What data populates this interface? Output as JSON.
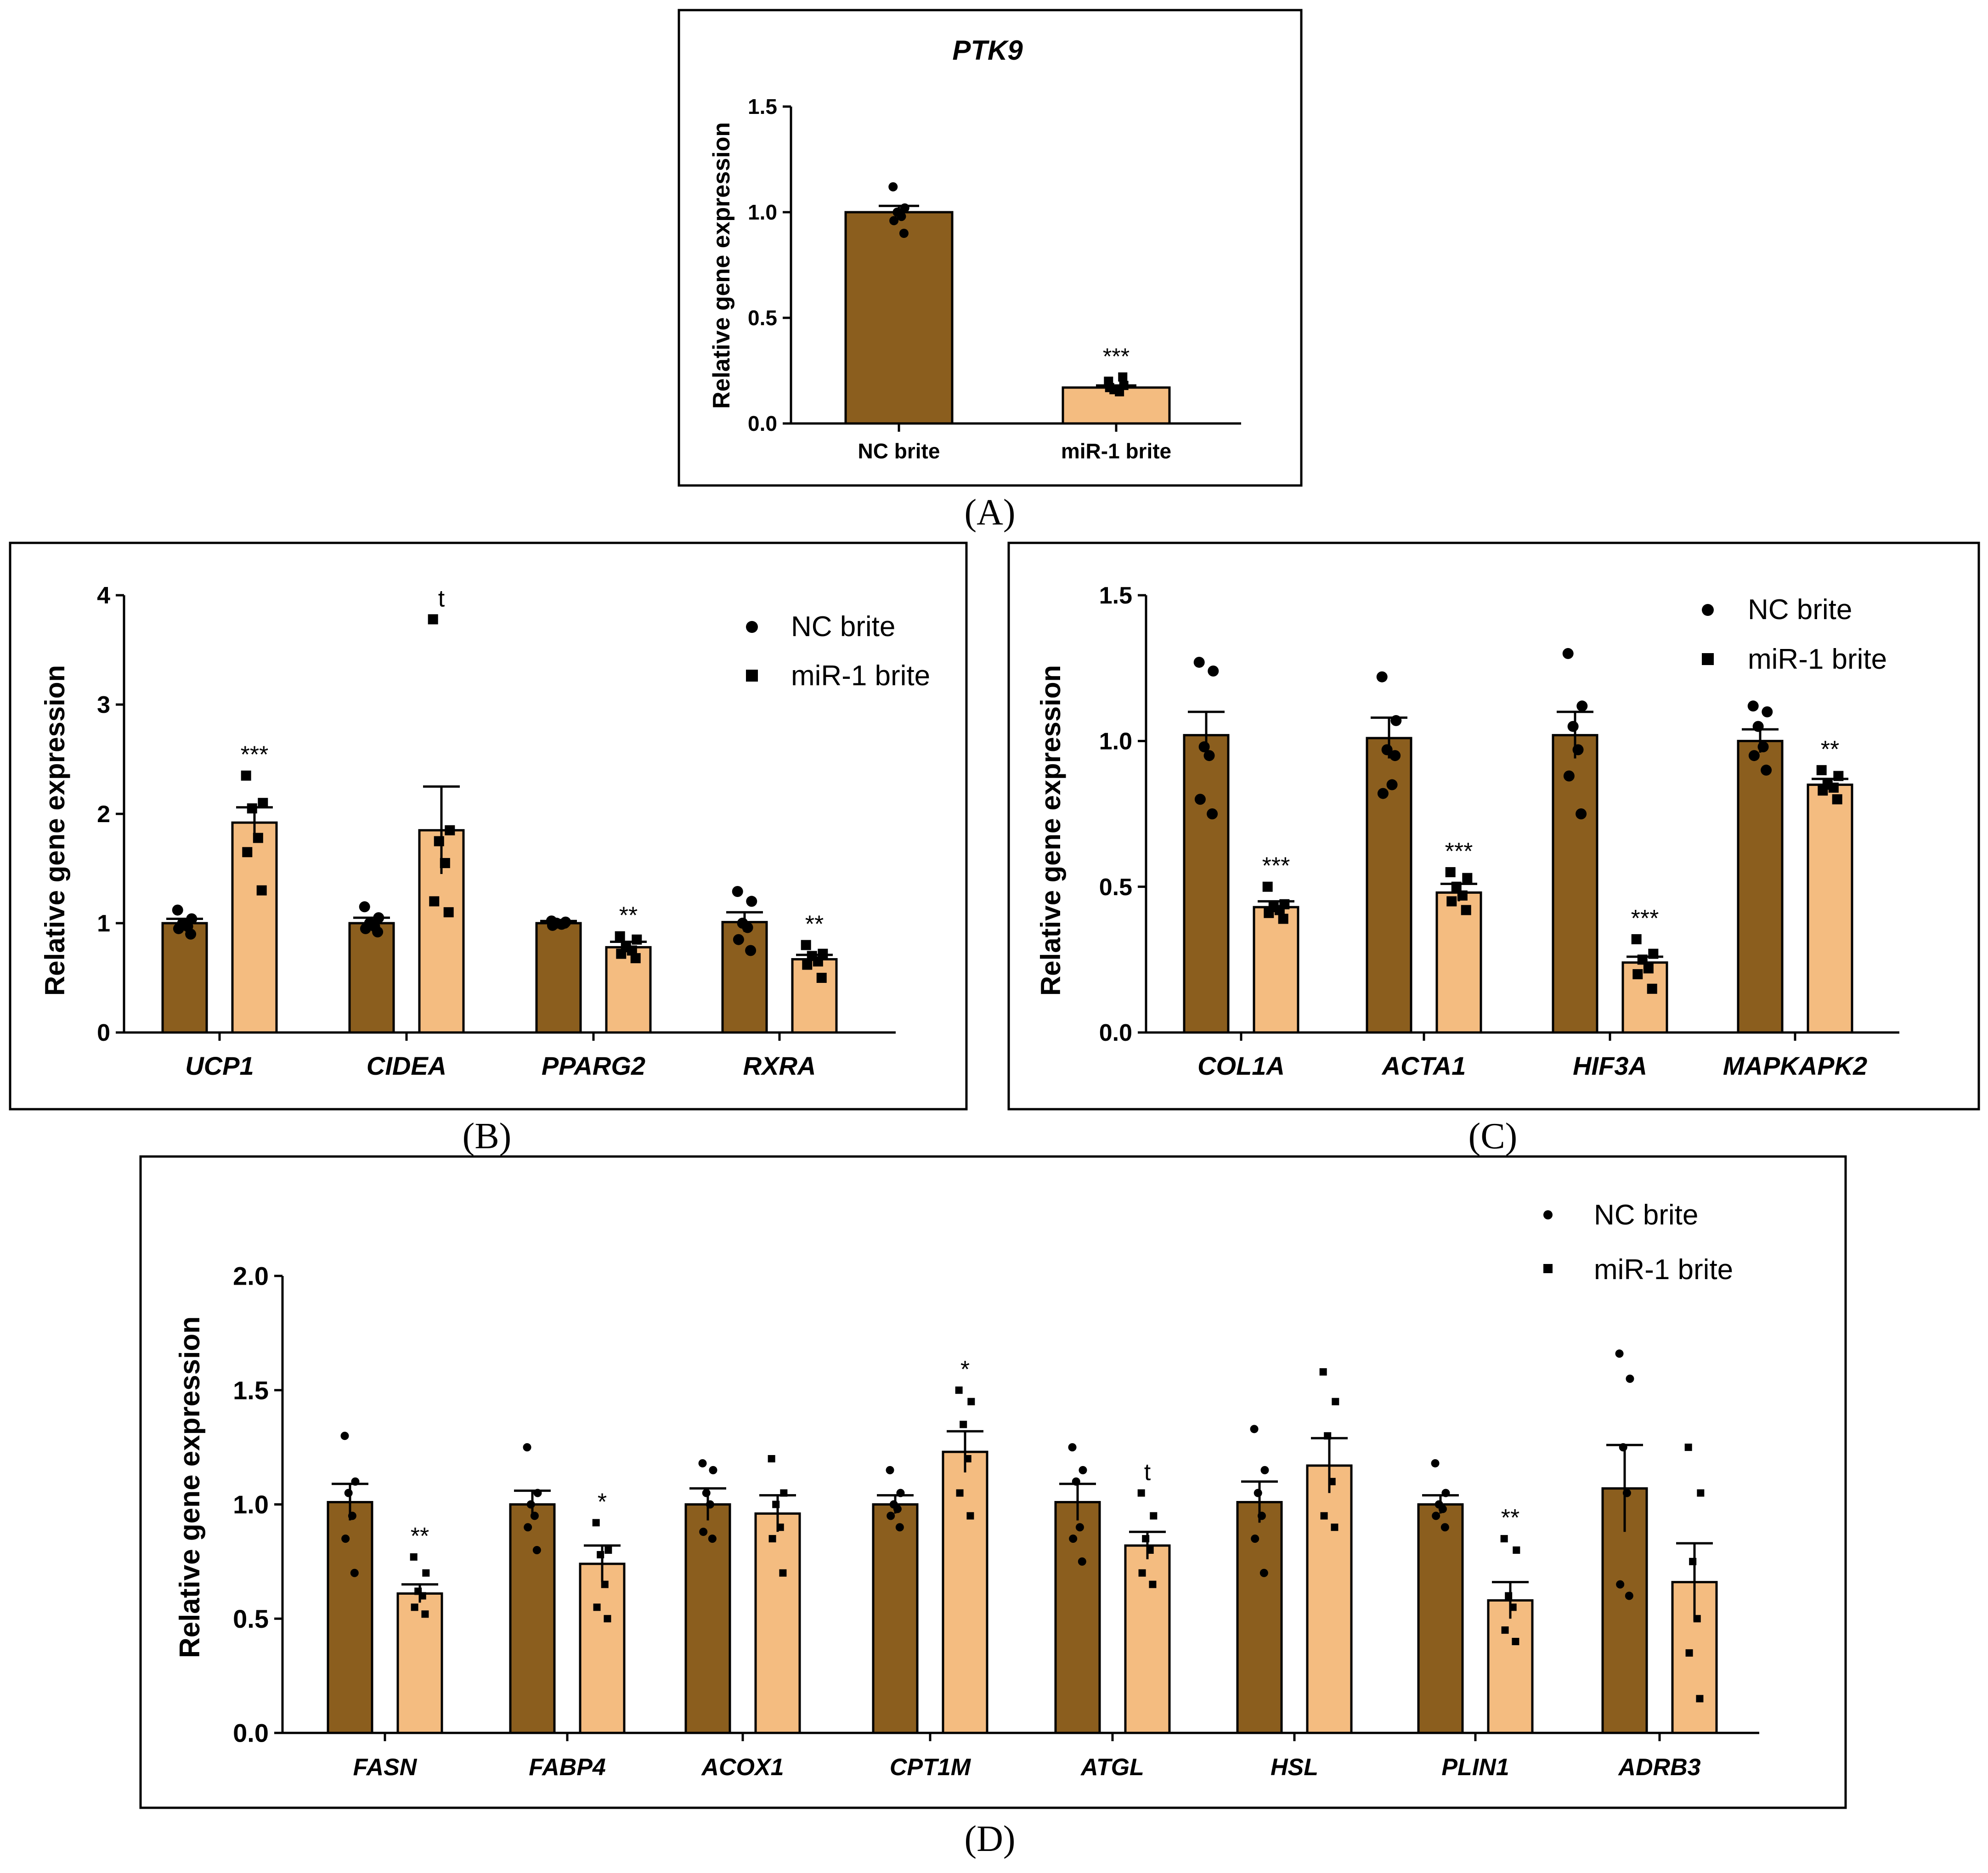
{
  "colors": {
    "nc": "#8B5E1E",
    "mir": "#F4BC80",
    "stroke": "#000000"
  },
  "legend": {
    "nc": "NC brite",
    "mir": "miR-1 brite"
  },
  "chart_data": [
    {
      "panel": "(A)",
      "type": "bar",
      "title": "PTK9",
      "ylabel": "Relative gene expression",
      "ylim": [
        0,
        1.5
      ],
      "yticks": [
        "0.0",
        "0.5",
        "1.0",
        "1.5"
      ],
      "categories": [
        "NC brite",
        "miR-1 brite"
      ],
      "values": [
        1.0,
        0.17
      ],
      "sem": [
        0.03,
        0.01
      ],
      "sig": [
        "",
        "***"
      ],
      "points": [
        [
          1.12,
          1.02,
          1.0,
          0.98,
          0.96,
          0.9
        ],
        [
          0.2,
          0.18,
          0.16,
          0.15,
          0.17,
          0.22
        ]
      ]
    },
    {
      "panel": "(B)",
      "type": "bar",
      "ylabel": "Relative gene expression",
      "ylim": [
        0,
        4
      ],
      "yticks": [
        "0",
        "1",
        "2",
        "3",
        "4"
      ],
      "legend": [
        "NC brite",
        "miR-1 brite"
      ],
      "categories": [
        "UCP1",
        "CIDEA",
        "PPARG2",
        "RXRA"
      ],
      "series": [
        {
          "name": "NC brite",
          "values": [
            1.0,
            1.0,
            1.0,
            1.01
          ],
          "sem": [
            0.04,
            0.05,
            0.02,
            0.09
          ],
          "points": [
            [
              1.12,
              1.04,
              1.0,
              0.97,
              0.95,
              0.9
            ],
            [
              1.15,
              1.05,
              1.0,
              0.97,
              0.95,
              0.92
            ],
            [
              1.02,
              1.01,
              1.0,
              0.99,
              0.98,
              1.0
            ],
            [
              1.29,
              1.2,
              1.0,
              0.96,
              0.85,
              0.75
            ]
          ]
        },
        {
          "name": "miR-1 brite",
          "values": [
            1.92,
            1.85,
            0.78,
            0.67
          ],
          "sem": [
            0.14,
            0.4,
            0.05,
            0.04
          ],
          "points": [
            [
              2.35,
              2.1,
              2.05,
              1.78,
              1.65,
              1.3
            ],
            [
              3.78,
              1.85,
              1.75,
              1.55,
              1.2,
              1.1
            ],
            [
              0.88,
              0.85,
              0.78,
              0.75,
              0.72,
              0.68
            ],
            [
              0.8,
              0.72,
              0.7,
              0.65,
              0.62,
              0.5
            ]
          ]
        }
      ],
      "sig": [
        "***",
        "t",
        "**",
        "**"
      ]
    },
    {
      "panel": "(C)",
      "type": "bar",
      "ylabel": "Relative gene expression",
      "ylim": [
        0,
        1.5
      ],
      "yticks": [
        "0.0",
        "0.5",
        "1.0",
        "1.5"
      ],
      "legend": [
        "NC brite",
        "miR-1 brite"
      ],
      "categories": [
        "COL1A",
        "ACTA1",
        "HIF3A",
        "MAPKAPK2"
      ],
      "series": [
        {
          "name": "NC brite",
          "values": [
            1.02,
            1.01,
            1.02,
            1.0
          ],
          "sem": [
            0.08,
            0.07,
            0.08,
            0.04
          ],
          "points": [
            [
              1.27,
              1.24,
              0.98,
              0.95,
              0.8,
              0.75
            ],
            [
              1.22,
              1.07,
              0.97,
              0.85,
              0.82,
              0.95
            ],
            [
              1.3,
              1.12,
              1.05,
              0.97,
              0.88,
              0.75
            ],
            [
              1.12,
              1.1,
              1.05,
              0.98,
              0.95,
              0.9
            ]
          ]
        },
        {
          "name": "miR-1 brite",
          "values": [
            0.43,
            0.48,
            0.24,
            0.85
          ],
          "sem": [
            0.02,
            0.03,
            0.02,
            0.02
          ],
          "points": [
            [
              0.5,
              0.44,
              0.43,
              0.42,
              0.41,
              0.39
            ],
            [
              0.55,
              0.53,
              0.5,
              0.47,
              0.45,
              0.42
            ],
            [
              0.32,
              0.27,
              0.25,
              0.22,
              0.2,
              0.15
            ],
            [
              0.9,
              0.88,
              0.85,
              0.84,
              0.83,
              0.8
            ]
          ]
        }
      ],
      "sig": [
        "***",
        "***",
        "***",
        "**"
      ]
    },
    {
      "panel": "(D)",
      "type": "bar",
      "ylabel": "Relative gene expression",
      "ylim": [
        0,
        2.0
      ],
      "yticks": [
        "0.0",
        "0.5",
        "1.0",
        "1.5",
        "2.0"
      ],
      "legend": [
        "NC brite",
        "miR-1 brite"
      ],
      "categories": [
        "FASN",
        "FABP4",
        "ACOX1",
        "CPT1M",
        "ATGL",
        "HSL",
        "PLIN1",
        "ADRB3"
      ],
      "series": [
        {
          "name": "NC brite",
          "values": [
            1.01,
            1.0,
            1.0,
            1.0,
            1.01,
            1.01,
            1.0,
            1.07
          ],
          "sem": [
            0.08,
            0.06,
            0.07,
            0.04,
            0.08,
            0.09,
            0.04,
            0.19
          ],
          "points": [
            [
              1.3,
              1.1,
              1.05,
              0.95,
              0.85,
              0.7
            ],
            [
              1.25,
              1.05,
              1.0,
              0.95,
              0.9,
              0.8
            ],
            [
              1.18,
              1.15,
              1.05,
              1.0,
              0.88,
              0.85
            ],
            [
              1.15,
              1.05,
              1.0,
              0.98,
              0.95,
              0.9
            ],
            [
              1.25,
              1.15,
              1.1,
              0.9,
              0.85,
              0.75
            ],
            [
              1.33,
              1.15,
              1.05,
              0.95,
              0.85,
              0.7
            ],
            [
              1.18,
              1.05,
              1.0,
              0.98,
              0.95,
              0.9
            ],
            [
              1.66,
              1.55,
              1.25,
              1.05,
              0.65,
              0.6
            ]
          ]
        },
        {
          "name": "miR-1 brite",
          "values": [
            0.61,
            0.74,
            0.96,
            1.23,
            0.82,
            1.17,
            0.58,
            0.66
          ],
          "sem": [
            0.04,
            0.08,
            0.08,
            0.09,
            0.06,
            0.12,
            0.08,
            0.17
          ],
          "points": [
            [
              0.77,
              0.7,
              0.62,
              0.6,
              0.55,
              0.52
            ],
            [
              0.92,
              0.8,
              0.78,
              0.65,
              0.55,
              0.5
            ],
            [
              1.2,
              1.05,
              1.0,
              0.9,
              0.85,
              0.7
            ],
            [
              1.5,
              1.45,
              1.35,
              1.2,
              1.05,
              0.95
            ],
            [
              1.05,
              0.95,
              0.85,
              0.8,
              0.7,
              0.65
            ],
            [
              1.58,
              1.45,
              1.3,
              1.1,
              0.95,
              0.9
            ],
            [
              0.85,
              0.8,
              0.6,
              0.55,
              0.45,
              0.4
            ],
            [
              1.25,
              1.05,
              0.75,
              0.5,
              0.35,
              0.15
            ]
          ]
        }
      ],
      "sig": [
        "**",
        "*",
        "",
        "*",
        "t",
        "",
        "**",
        ""
      ]
    }
  ]
}
